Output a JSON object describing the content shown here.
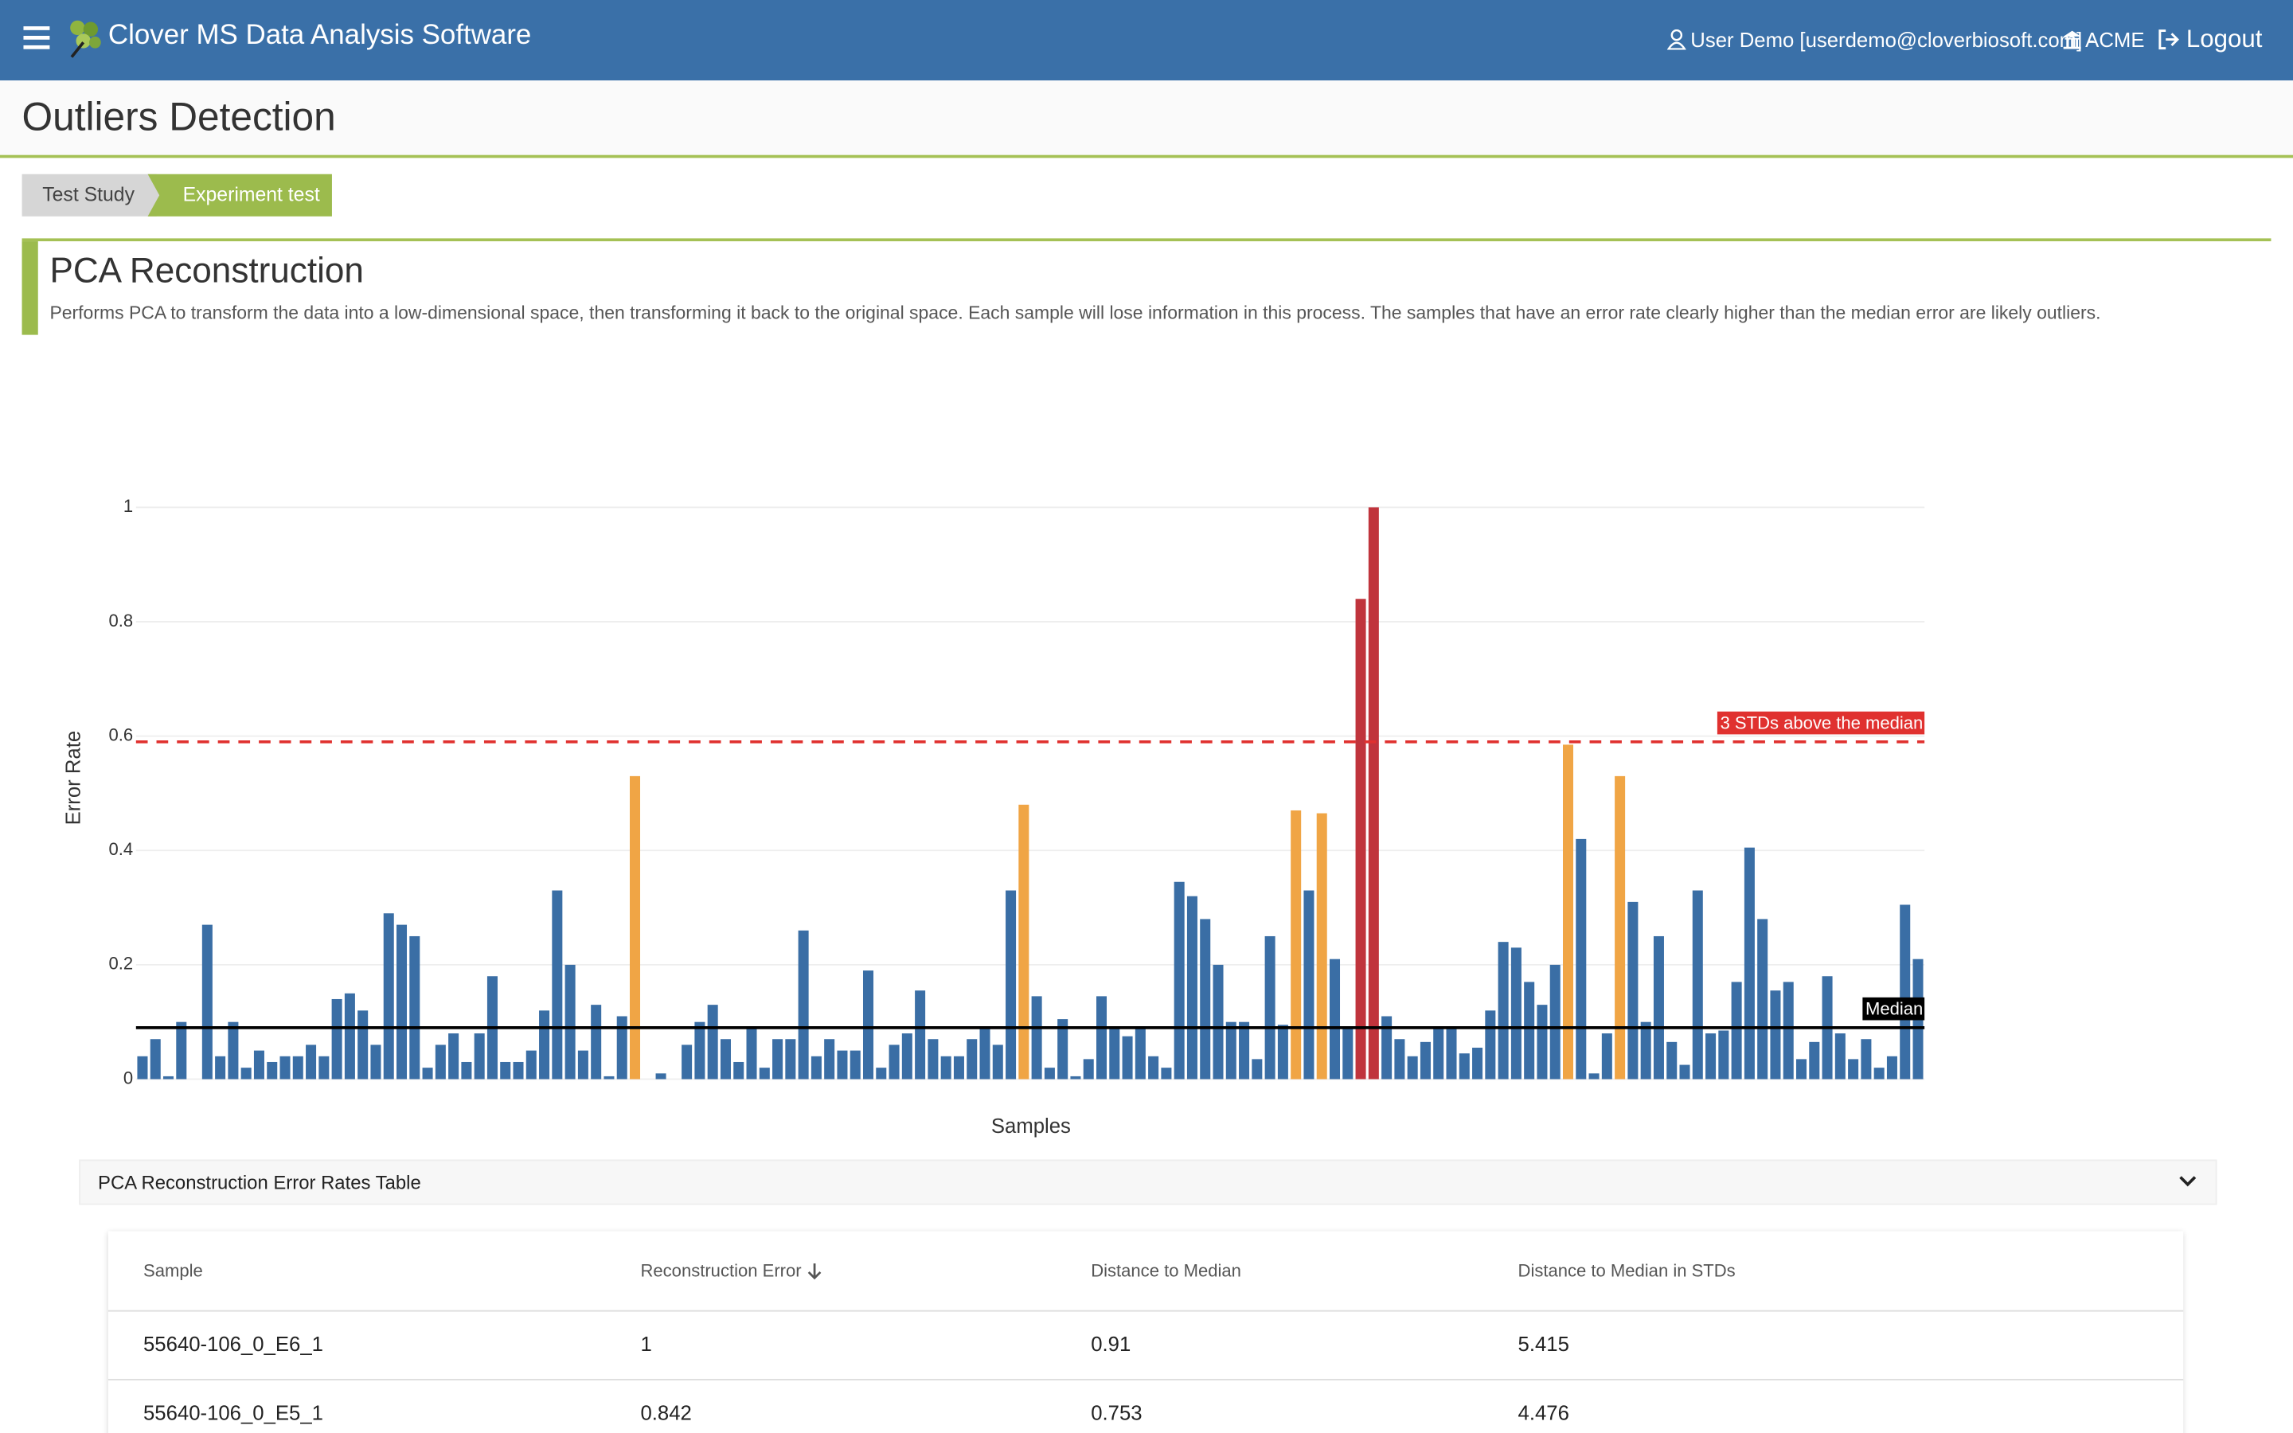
{
  "header": {
    "app_title": "Clover MS Data Analysis Software",
    "user": "User Demo [userdemo@cloverbiosoft.com] -",
    "org": "ACME",
    "logout": "Logout"
  },
  "page": {
    "title": "Outliers Detection"
  },
  "breadcrumb": [
    "Test Study",
    "Experiment test"
  ],
  "section": {
    "title": "PCA Reconstruction",
    "description": "Performs PCA to transform the data into a low-dimensional space, then transforming it back to the original space. Each sample will lose information in this process. The samples that have an error rate clearly higher than the median error are likely outliers."
  },
  "chart_data": {
    "type": "bar",
    "x_label": "Samples",
    "y_label": "Error Rate",
    "ylim": [
      0,
      1
    ],
    "yticks": [
      0,
      0.2,
      0.4,
      0.6,
      0.8,
      1
    ],
    "grid": true,
    "categories": [
      null,
      null,
      null,
      null,
      null,
      null,
      null,
      null,
      null,
      null,
      null,
      null,
      null,
      null,
      null,
      null,
      null,
      null,
      null,
      null,
      null,
      null,
      null,
      null,
      null,
      null,
      null,
      null,
      null,
      null,
      null,
      null,
      null,
      null,
      null,
      null,
      null,
      null,
      null,
      null,
      null,
      null,
      null,
      null,
      null,
      null,
      null,
      null,
      null,
      null,
      null,
      null,
      null,
      null,
      null,
      null,
      null,
      null,
      null,
      null,
      null,
      null,
      null,
      null,
      null,
      null,
      null,
      null,
      null,
      null,
      null,
      null,
      null,
      null,
      null,
      null,
      null,
      null,
      null,
      null,
      null,
      null,
      null,
      null,
      null,
      null,
      null,
      null,
      null,
      null,
      null,
      null,
      null,
      null,
      null,
      null,
      null,
      null,
      null,
      null,
      null,
      null,
      null,
      null,
      null,
      null,
      null,
      null,
      null,
      null,
      null,
      null,
      null,
      null,
      null,
      null,
      null,
      null,
      null,
      null,
      null,
      null,
      null,
      null,
      null,
      null,
      null,
      null,
      null,
      null,
      null,
      null,
      null,
      null,
      null,
      null,
      null,
      null
    ],
    "values": [
      0.04,
      0.07,
      0.005,
      0.1,
      0,
      0.27,
      0.04,
      0.1,
      0.02,
      0.05,
      0.03,
      0.04,
      0.04,
      0.06,
      0.04,
      0.14,
      0.15,
      0.12,
      0.06,
      0.29,
      0.27,
      0.25,
      0.02,
      0.06,
      0.08,
      0.03,
      0.08,
      0.18,
      0.03,
      0.03,
      0.05,
      0.12,
      0.33,
      0.2,
      0.05,
      0.13,
      0.005,
      0.11,
      0.53,
      0,
      0.01,
      0,
      0.06,
      0.1,
      0.13,
      0.07,
      0.03,
      0.09,
      0.02,
      0.07,
      0.07,
      0.26,
      0.04,
      0.07,
      0.05,
      0.05,
      0.19,
      0.02,
      0.06,
      0.08,
      0.155,
      0.07,
      0.04,
      0.04,
      0.07,
      0.09,
      0.06,
      0.33,
      0.48,
      0.145,
      0.02,
      0.105,
      0.005,
      0.035,
      0.145,
      0.09,
      0.075,
      0.09,
      0.04,
      0.02,
      0.345,
      0.32,
      0.28,
      0.2,
      0.1,
      0.1,
      0.035,
      0.25,
      0.095,
      0.47,
      0.33,
      0.465,
      0.21,
      0.09,
      0.84,
      1,
      0.11,
      0.07,
      0.04,
      0.065,
      0.09,
      0.09,
      0.045,
      0.055,
      0.12,
      0.24,
      0.23,
      0.17,
      0.13,
      0.2,
      0.585,
      0.42,
      0.01,
      0.08,
      0.53,
      0.31,
      0.1,
      0.25,
      0.065,
      0.025,
      0.33,
      0.08,
      0.085,
      0.17,
      0.405,
      0.28,
      0.155,
      0.17,
      0.035,
      0.065,
      0.18,
      0.08,
      0.035,
      0.07,
      0.02,
      0.04,
      0.305,
      0.21
    ],
    "colors": [
      "#3a6ea5",
      "#3a6ea5",
      "#3a6ea5",
      "#3a6ea5",
      "#3a6ea5",
      "#3a6ea5",
      "#3a6ea5",
      "#3a6ea5",
      "#3a6ea5",
      "#3a6ea5",
      "#3a6ea5",
      "#3a6ea5",
      "#3a6ea5",
      "#3a6ea5",
      "#3a6ea5",
      "#3a6ea5",
      "#3a6ea5",
      "#3a6ea5",
      "#3a6ea5",
      "#3a6ea5",
      "#3a6ea5",
      "#3a6ea5",
      "#3a6ea5",
      "#3a6ea5",
      "#3a6ea5",
      "#3a6ea5",
      "#3a6ea5",
      "#3a6ea5",
      "#3a6ea5",
      "#3a6ea5",
      "#3a6ea5",
      "#3a6ea5",
      "#3a6ea5",
      "#3a6ea5",
      "#3a6ea5",
      "#3a6ea5",
      "#3a6ea5",
      "#3a6ea5",
      "#f0a545",
      "#3a6ea5",
      "#3a6ea5",
      "#3a6ea5",
      "#3a6ea5",
      "#3a6ea5",
      "#3a6ea5",
      "#3a6ea5",
      "#3a6ea5",
      "#3a6ea5",
      "#3a6ea5",
      "#3a6ea5",
      "#3a6ea5",
      "#3a6ea5",
      "#3a6ea5",
      "#3a6ea5",
      "#3a6ea5",
      "#3a6ea5",
      "#3a6ea5",
      "#3a6ea5",
      "#3a6ea5",
      "#3a6ea5",
      "#3a6ea5",
      "#3a6ea5",
      "#3a6ea5",
      "#3a6ea5",
      "#3a6ea5",
      "#3a6ea5",
      "#3a6ea5",
      "#3a6ea5",
      "#f0a545",
      "#3a6ea5",
      "#3a6ea5",
      "#3a6ea5",
      "#3a6ea5",
      "#3a6ea5",
      "#3a6ea5",
      "#3a6ea5",
      "#3a6ea5",
      "#3a6ea5",
      "#3a6ea5",
      "#3a6ea5",
      "#3a6ea5",
      "#3a6ea5",
      "#3a6ea5",
      "#3a6ea5",
      "#3a6ea5",
      "#3a6ea5",
      "#3a6ea5",
      "#3a6ea5",
      "#3a6ea5",
      "#f0a545",
      "#3a6ea5",
      "#f0a545",
      "#3a6ea5",
      "#3a6ea5",
      "#c0343c",
      "#c0343c",
      "#3a6ea5",
      "#3a6ea5",
      "#3a6ea5",
      "#3a6ea5",
      "#3a6ea5",
      "#3a6ea5",
      "#3a6ea5",
      "#3a6ea5",
      "#3a6ea5",
      "#3a6ea5",
      "#3a6ea5",
      "#3a6ea5",
      "#3a6ea5",
      "#3a6ea5",
      "#f0a545",
      "#3a6ea5",
      "#3a6ea5",
      "#3a6ea5",
      "#f0a545",
      "#3a6ea5",
      "#3a6ea5",
      "#3a6ea5",
      "#3a6ea5",
      "#3a6ea5",
      "#3a6ea5",
      "#3a6ea5",
      "#3a6ea5",
      "#3a6ea5",
      "#3a6ea5",
      "#3a6ea5",
      "#3a6ea5",
      "#3a6ea5",
      "#3a6ea5",
      "#3a6ea5",
      "#3a6ea5",
      "#3a6ea5",
      "#3a6ea5",
      "#3a6ea5",
      "#3a6ea5",
      "#3a6ea5",
      "#3a6ea5",
      "#3a6ea5"
    ],
    "lines": [
      {
        "label": "3 STDs above the median",
        "value": 0.59,
        "color": "#e0312f",
        "dash": true
      },
      {
        "label": "Median",
        "value": 0.09,
        "color": "#000000",
        "dash": false
      }
    ]
  },
  "table": {
    "title": "PCA Reconstruction Error Rates Table",
    "columns": [
      "Sample",
      "Reconstruction Error",
      "Distance to Median",
      "Distance to Median in STDs"
    ],
    "rows": [
      [
        "55640-106_0_E6_1",
        1,
        0.91,
        5.415
      ],
      [
        "55640-106_0_E5_1",
        0.842,
        0.753,
        4.476
      ]
    ]
  }
}
